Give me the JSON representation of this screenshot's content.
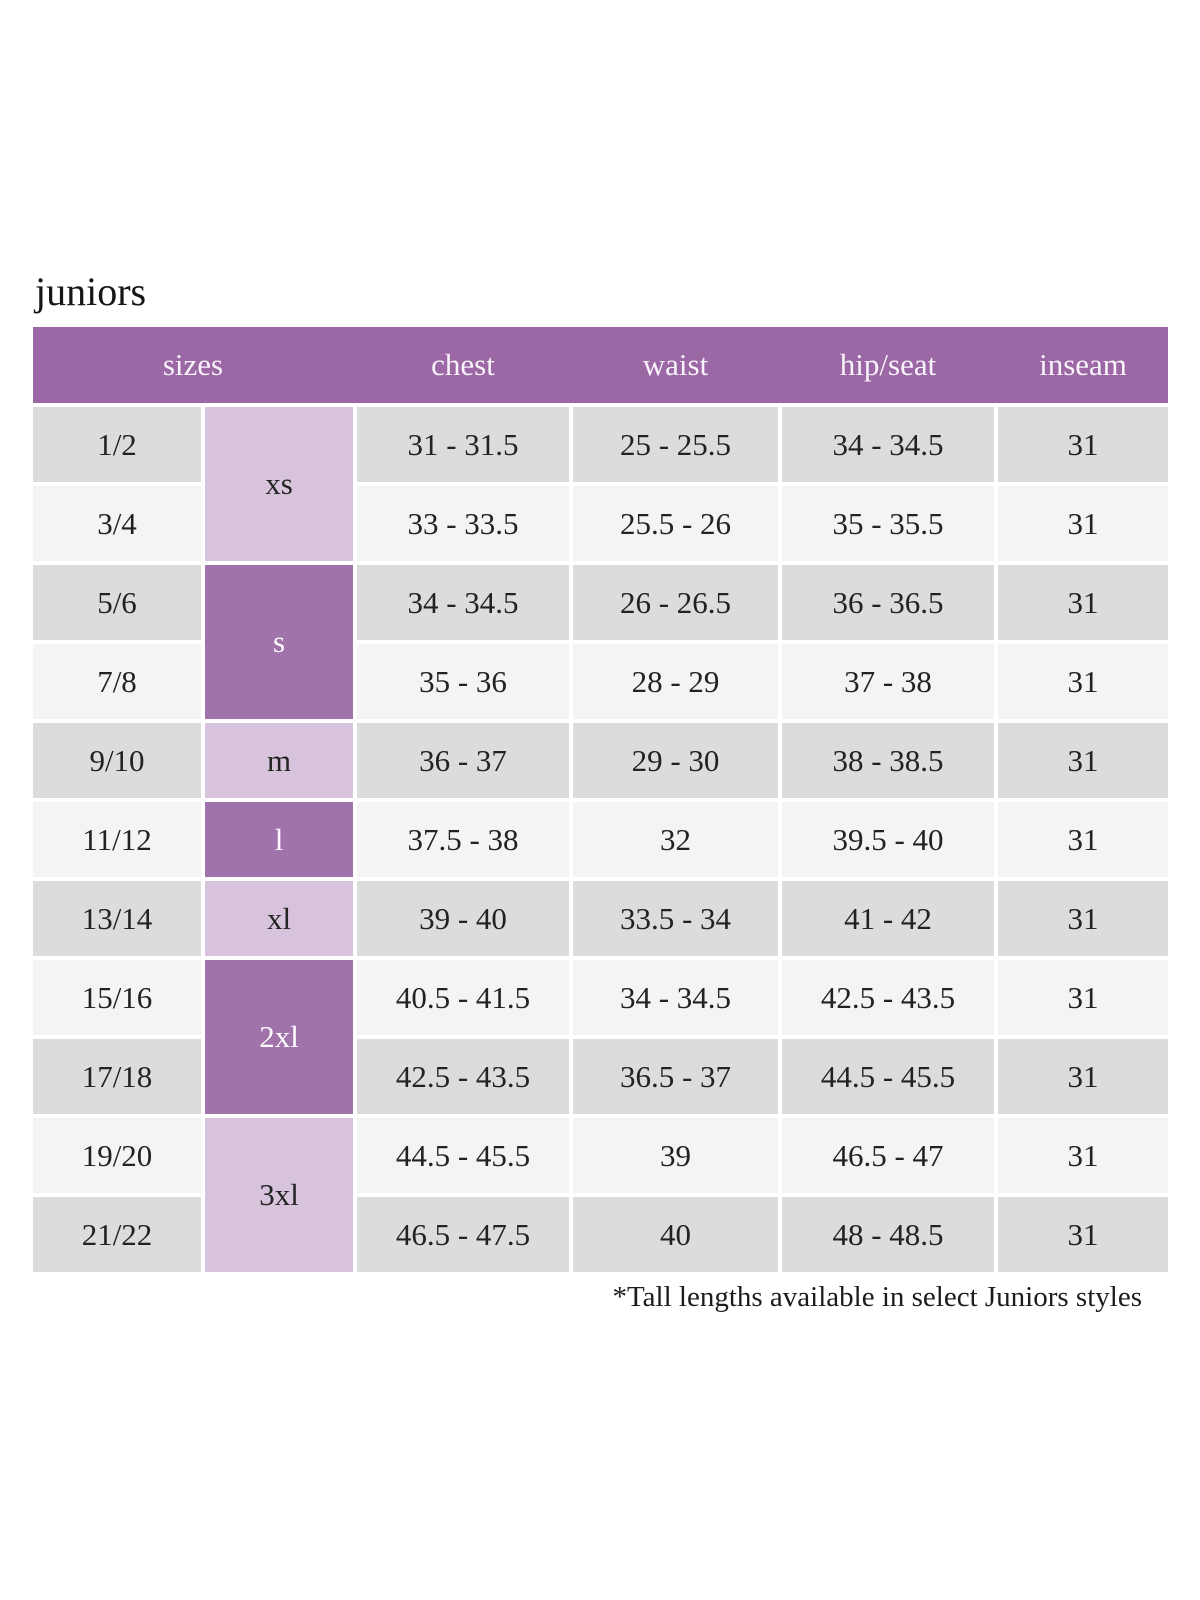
{
  "page": {
    "title": "juniors",
    "footnote": "*Tall lengths available in select Juniors styles"
  },
  "colors": {
    "header_purple": "#9b68a5",
    "dark_size_purple": "#a173ab",
    "light_size_purple": "#d7c4dc",
    "row_gray": "#dcdcdc",
    "row_light": "#f4f4f4",
    "header_text": "#f8f2fa",
    "body_text": "#222222"
  },
  "table": {
    "headers": [
      {
        "label": "sizes"
      },
      {
        "label": "chest"
      },
      {
        "label": "waist"
      },
      {
        "label": "hip/seat"
      },
      {
        "label": "inseam"
      }
    ],
    "size_groups": [
      {
        "label": "xs",
        "rows": [
          0,
          1
        ],
        "tone": "light"
      },
      {
        "label": "s",
        "rows": [
          2,
          3
        ],
        "tone": "dark"
      },
      {
        "label": "m",
        "rows": [
          4
        ],
        "tone": "light"
      },
      {
        "label": "l",
        "rows": [
          5
        ],
        "tone": "dark"
      },
      {
        "label": "xl",
        "rows": [
          6
        ],
        "tone": "light"
      },
      {
        "label": "2xl",
        "rows": [
          7,
          8
        ],
        "tone": "dark"
      },
      {
        "label": "3xl",
        "rows": [
          9,
          10
        ],
        "tone": "light"
      }
    ],
    "rows": [
      {
        "size": "1/2",
        "chest": "31 - 31.5",
        "waist": "25 - 25.5",
        "hip_seat": "34 - 34.5",
        "inseam": "31"
      },
      {
        "size": "3/4",
        "chest": "33 - 33.5",
        "waist": "25.5 - 26",
        "hip_seat": "35 - 35.5",
        "inseam": "31"
      },
      {
        "size": "5/6",
        "chest": "34 - 34.5",
        "waist": "26 - 26.5",
        "hip_seat": "36 - 36.5",
        "inseam": "31"
      },
      {
        "size": "7/8",
        "chest": "35 - 36",
        "waist": "28 - 29",
        "hip_seat": "37 - 38",
        "inseam": "31"
      },
      {
        "size": "9/10",
        "chest": "36 - 37",
        "waist": "29 - 30",
        "hip_seat": "38 - 38.5",
        "inseam": "31"
      },
      {
        "size": "11/12",
        "chest": "37.5 - 38",
        "waist": "32",
        "hip_seat": "39.5 - 40",
        "inseam": "31"
      },
      {
        "size": "13/14",
        "chest": "39 - 40",
        "waist": "33.5 - 34",
        "hip_seat": "41 - 42",
        "inseam": "31"
      },
      {
        "size": "15/16",
        "chest": "40.5 - 41.5",
        "waist": "34 - 34.5",
        "hip_seat": "42.5 - 43.5",
        "inseam": "31"
      },
      {
        "size": "17/18",
        "chest": "42.5 - 43.5",
        "waist": "36.5 - 37",
        "hip_seat": "44.5 - 45.5",
        "inseam": "31"
      },
      {
        "size": "19/20",
        "chest": "44.5 - 45.5",
        "waist": "39",
        "hip_seat": "46.5 - 47",
        "inseam": "31"
      },
      {
        "size": "21/22",
        "chest": "46.5 - 47.5",
        "waist": "40",
        "hip_seat": "48 - 48.5",
        "inseam": "31"
      }
    ]
  }
}
